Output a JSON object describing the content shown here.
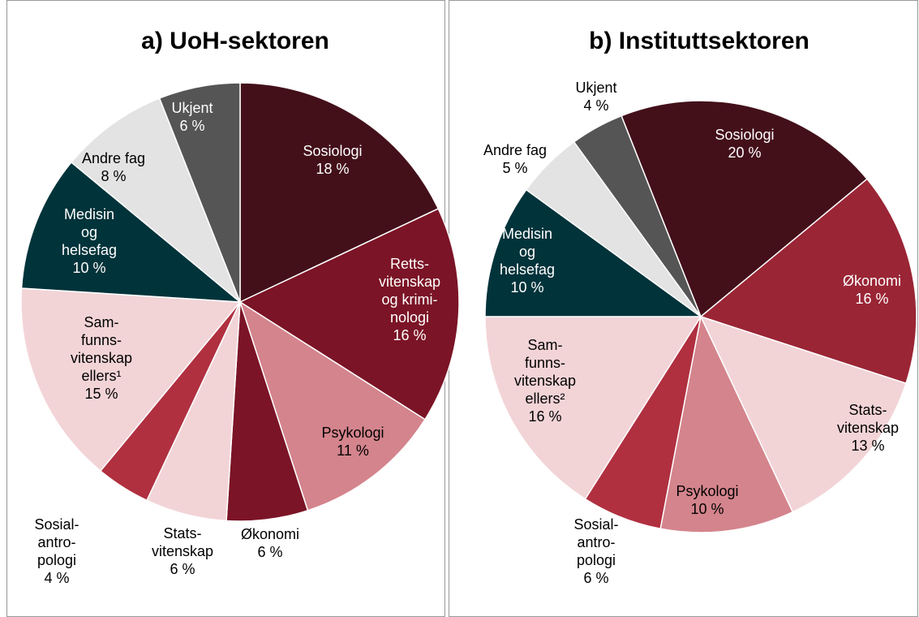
{
  "chart_data": [
    {
      "type": "pie",
      "title": "a) UoH-sektoren",
      "categories": [
        "Sosiologi",
        "Retts-\nvitenskap\nog krimi-\nnologi",
        "Psykologi",
        "Økonomi",
        "Stats-\nvitenskap",
        "Sosial-\nantro-\npologi",
        "Sam-\nfunns-\nvitenskap\nellers¹",
        "Medisin\nog\nhelsefag",
        "Andre fag",
        "Ukjent"
      ],
      "values": [
        18,
        16,
        11,
        6,
        6,
        4,
        15,
        10,
        8,
        6
      ],
      "value_labels": [
        "18 %",
        "16 %",
        "11 %",
        "6 %",
        "6 %",
        "4 %",
        "15 %",
        "10 %",
        "8 %",
        "6 %"
      ],
      "colors": [
        "#43101a",
        "#7b1426",
        "#d4848c",
        "#7b1426",
        "#f2d4d7",
        "#b03040",
        "#f2d4d7",
        "#00333a",
        "#e3e3e3",
        "#555555"
      ]
    },
    {
      "type": "pie",
      "title": "b) Instituttsektoren",
      "categories": [
        "Sosiologi",
        "Økonomi",
        "Stats-\nvitenskap",
        "Psykologi",
        "Sosial-\nantro-\npologi",
        "Sam-\nfunns-\nvitenskap\nellers²",
        "Medisin\nog\nhelsefag",
        "Andre fag",
        "Ukjent"
      ],
      "values": [
        20,
        16,
        13,
        10,
        6,
        16,
        10,
        5,
        4
      ],
      "value_labels": [
        "20 %",
        "16 %",
        "13 %",
        "10 %",
        "6 %",
        "16 %",
        "10 %",
        "5 %",
        "4 %"
      ],
      "colors": [
        "#43101a",
        "#9a2535",
        "#f2d4d7",
        "#d4848c",
        "#b03040",
        "#f2d4d7",
        "#00333a",
        "#e3e3e3",
        "#555555"
      ]
    }
  ]
}
